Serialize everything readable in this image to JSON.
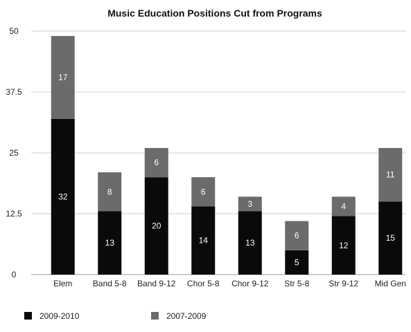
{
  "chart_data": {
    "type": "bar",
    "stacked": true,
    "title": "Music Education Positions Cut from Programs",
    "xlabel": "",
    "ylabel": "",
    "ylim": [
      0,
      50
    ],
    "yticks": [
      "0",
      "12.5",
      "25",
      "37.5",
      "50"
    ],
    "ytick_values": [
      0,
      12.5,
      25,
      37.5,
      50
    ],
    "grid": true,
    "legend_position": "bottom",
    "categories": [
      "Elem",
      "Band 5-8",
      "Band 9-12",
      "Chor 5-8",
      "Chor 9-12",
      "Str 5-8",
      "Str 9-12",
      "Mid Gen"
    ],
    "series": [
      {
        "name": "2009-2010",
        "color": "#0a0a0a",
        "values": [
          32,
          13,
          20,
          14,
          13,
          5,
          12,
          15
        ]
      },
      {
        "name": "2007-2009",
        "color": "#6b6b6b",
        "values": [
          17,
          8,
          6,
          6,
          3,
          6,
          4,
          11
        ]
      }
    ]
  }
}
